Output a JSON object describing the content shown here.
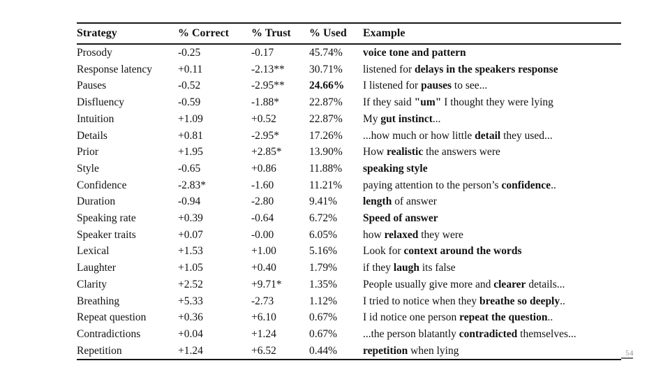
{
  "page_number": "54",
  "table": {
    "headers": [
      "Strategy",
      "% Correct",
      "% Trust",
      "% Used",
      "Example"
    ],
    "rows": [
      {
        "strategy": "Prosody",
        "correct": "-0.25",
        "trust": "-0.17",
        "used": "45.74%",
        "used_bold": false,
        "example": [
          {
            "t": "voice tone and pattern",
            "b": true
          }
        ]
      },
      {
        "strategy": "Response latency",
        "correct": "+0.11",
        "trust": "-2.13**",
        "used": "30.71%",
        "used_bold": false,
        "example": [
          {
            "t": "listened for ",
            "b": false
          },
          {
            "t": "delays in the speakers response",
            "b": true
          }
        ]
      },
      {
        "strategy": "Pauses",
        "correct": "-0.52",
        "trust": "-2.95**",
        "used": "24.66%",
        "used_bold": true,
        "example": [
          {
            "t": "I listened for ",
            "b": false
          },
          {
            "t": "pauses",
            "b": true
          },
          {
            "t": " to see...",
            "b": false
          }
        ]
      },
      {
        "strategy": "Disfluency",
        "correct": "-0.59",
        "trust": "-1.88*",
        "used": "22.87%",
        "used_bold": false,
        "example": [
          {
            "t": "If they said ",
            "b": false
          },
          {
            "t": "\"um\"",
            "b": true
          },
          {
            "t": " I thought they were lying",
            "b": false
          }
        ]
      },
      {
        "strategy": "Intuition",
        "correct": "+1.09",
        "trust": "+0.52",
        "used": "22.87%",
        "used_bold": false,
        "example": [
          {
            "t": "My ",
            "b": false
          },
          {
            "t": "gut instinct",
            "b": true
          },
          {
            "t": "...",
            "b": false
          }
        ]
      },
      {
        "strategy": "Details",
        "correct": "+0.81",
        "trust": "-2.95*",
        "used": "17.26%",
        "used_bold": false,
        "example": [
          {
            "t": "...how much or how little ",
            "b": false
          },
          {
            "t": "detail",
            "b": true
          },
          {
            "t": " they used...",
            "b": false
          }
        ]
      },
      {
        "strategy": "Prior",
        "correct": "+1.95",
        "trust": "+2.85*",
        "used": "13.90%",
        "used_bold": false,
        "example": [
          {
            "t": "How ",
            "b": false
          },
          {
            "t": "realistic",
            "b": true
          },
          {
            "t": " the answers were",
            "b": false
          }
        ]
      },
      {
        "strategy": "Style",
        "correct": "-0.65",
        "trust": "+0.86",
        "used": "11.88%",
        "used_bold": false,
        "example": [
          {
            "t": "speaking style",
            "b": true
          }
        ]
      },
      {
        "strategy": "Confidence",
        "correct": "-2.83*",
        "trust": "-1.60",
        "used": "11.21%",
        "used_bold": false,
        "example": [
          {
            "t": "paying attention to the person’s ",
            "b": false
          },
          {
            "t": "confidence",
            "b": true
          },
          {
            "t": "..",
            "b": false
          }
        ]
      },
      {
        "strategy": "Duration",
        "correct": "-0.94",
        "trust": "-2.80",
        "used": "9.41%",
        "used_bold": false,
        "example": [
          {
            "t": "length",
            "b": true
          },
          {
            "t": " of answer",
            "b": false
          }
        ]
      },
      {
        "strategy": "Speaking rate",
        "correct": "+0.39",
        "trust": "-0.64",
        "used": "6.72%",
        "used_bold": false,
        "example": [
          {
            "t": "Speed of answer",
            "b": true
          }
        ]
      },
      {
        "strategy": "Speaker traits",
        "correct": "+0.07",
        "trust": "-0.00",
        "used": "6.05%",
        "used_bold": false,
        "example": [
          {
            "t": "how ",
            "b": false
          },
          {
            "t": "relaxed",
            "b": true
          },
          {
            "t": " they were",
            "b": false
          }
        ]
      },
      {
        "strategy": "Lexical",
        "correct": "+1.53",
        "trust": "+1.00",
        "used": "5.16%",
        "used_bold": false,
        "example": [
          {
            "t": "Look for ",
            "b": false
          },
          {
            "t": "context around the words",
            "b": true
          }
        ]
      },
      {
        "strategy": "Laughter",
        "correct": "+1.05",
        "trust": "+0.40",
        "used": "1.79%",
        "used_bold": false,
        "example": [
          {
            "t": "if they ",
            "b": false
          },
          {
            "t": "laugh",
            "b": true
          },
          {
            "t": " its false",
            "b": false
          }
        ]
      },
      {
        "strategy": "Clarity",
        "correct": "+2.52",
        "trust": "+9.71*",
        "used": "1.35%",
        "used_bold": false,
        "example": [
          {
            "t": "People usually give more and ",
            "b": false
          },
          {
            "t": "clearer",
            "b": true
          },
          {
            "t": " details...",
            "b": false
          }
        ]
      },
      {
        "strategy": "Breathing",
        "correct": "+5.33",
        "trust": "-2.73",
        "used": "1.12%",
        "used_bold": false,
        "example": [
          {
            "t": "I tried to notice when they ",
            "b": false
          },
          {
            "t": "breathe so deeply",
            "b": true
          },
          {
            "t": "..",
            "b": false
          }
        ]
      },
      {
        "strategy": "Repeat question",
        "correct": "+0.36",
        "trust": "+6.10",
        "used": "0.67%",
        "used_bold": false,
        "example": [
          {
            "t": "I id notice one person ",
            "b": false
          },
          {
            "t": "repeat the question",
            "b": true
          },
          {
            "t": "..",
            "b": false
          }
        ]
      },
      {
        "strategy": "Contradictions",
        "correct": "+0.04",
        "trust": "+1.24",
        "used": "0.67%",
        "used_bold": false,
        "example": [
          {
            "t": "...the person blatantly ",
            "b": false
          },
          {
            "t": "contradicted",
            "b": true
          },
          {
            "t": " themselves...",
            "b": false
          }
        ]
      },
      {
        "strategy": "Repetition",
        "correct": "+1.24",
        "trust": "+6.52",
        "used": "0.44%",
        "used_bold": false,
        "example": [
          {
            "t": "repetition",
            "b": true
          },
          {
            "t": " when lying",
            "b": false
          }
        ]
      }
    ]
  }
}
